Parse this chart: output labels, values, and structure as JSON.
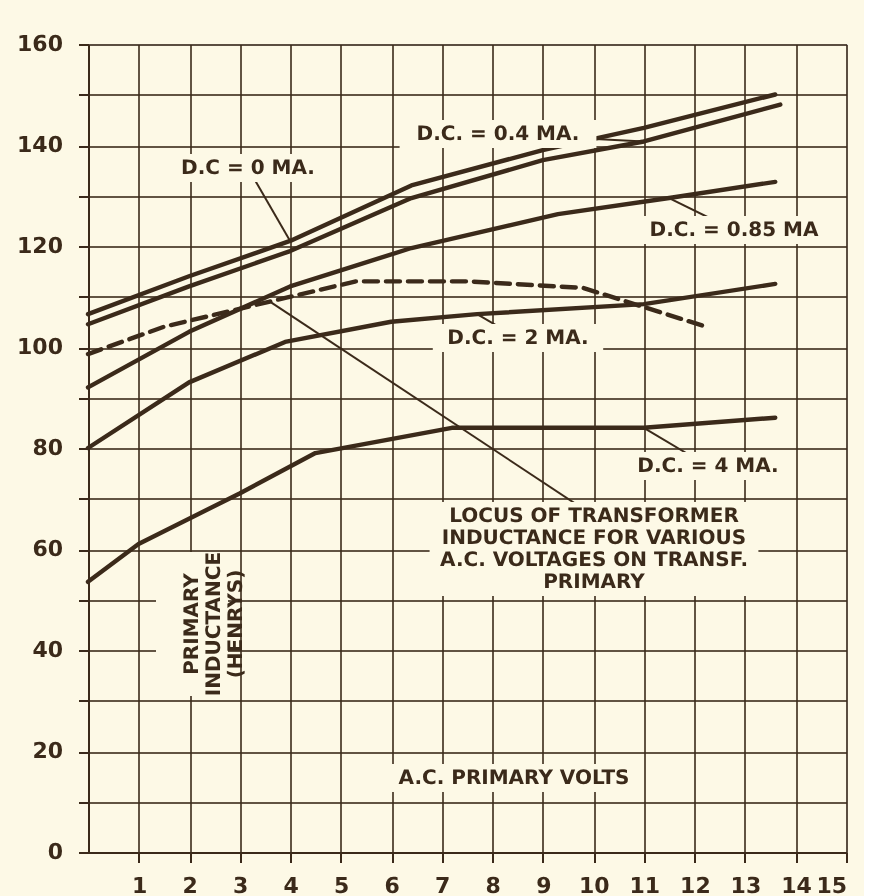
{
  "chart_data": {
    "type": "line",
    "xlabel": "A.C. PRIMARY VOLTS",
    "ylabel": "PRIMARY INDUCTANCE (HENRYS)",
    "xlim": [
      0,
      15
    ],
    "xticks": [
      1,
      2,
      3,
      4,
      5,
      6,
      7,
      8,
      9,
      10,
      11,
      12,
      13,
      14,
      15
    ],
    "ylim": [
      0,
      160
    ],
    "yticks": [
      0,
      {
        "value": 10,
        "label": null
      },
      20,
      {
        "value": 30,
        "label": null
      },
      40,
      {
        "value": 50,
        "label": null
      },
      60,
      {
        "value": 70,
        "label": null
      },
      80,
      {
        "value": 90,
        "label": null
      },
      100,
      {
        "value": 110,
        "label": null
      },
      120,
      {
        "value": 130,
        "label": null
      },
      140,
      {
        "value": 150,
        "label": null
      },
      160
    ],
    "grid": true,
    "legend": false,
    "marker": "none",
    "line_style": "solid",
    "series": [
      {
        "name": "D.C = 0 MA.",
        "color": "#3b2a1a",
        "x": [
          0,
          2,
          4,
          6.4,
          9,
          11,
          13.6
        ],
        "values": [
          106.5,
          114,
          121,
          132,
          139,
          143.4,
          150
        ]
      },
      {
        "name": "D.C. = 0.4 MA.",
        "color": "#3b2a1a",
        "x": [
          0,
          2,
          4,
          6.4,
          9,
          11,
          13.7
        ],
        "values": [
          104.5,
          112,
          119,
          129.5,
          137,
          140.7,
          148
        ]
      },
      {
        "name": "D.C. = 0.85 MA",
        "color": "#3b2a1a",
        "x": [
          0,
          2,
          4,
          6.4,
          9.3,
          11.5,
          13.6
        ],
        "values": [
          92,
          103,
          112,
          119.6,
          126.3,
          129.5,
          132.7
        ]
      },
      {
        "name": "D.C. = 2 MA.",
        "color": "#3b2a1a",
        "x": [
          0,
          2,
          3.9,
          6,
          7.7,
          11,
          13.6
        ],
        "values": [
          80,
          93,
          101,
          105,
          106.5,
          108.5,
          112.5
        ]
      },
      {
        "name": "D.C. = 4 MA.",
        "color": "#3b2a1a",
        "x": [
          0,
          1,
          3,
          4.5,
          7.2,
          11,
          13.6
        ],
        "values": [
          53.5,
          61,
          71,
          79,
          84,
          84,
          86
        ]
      },
      {
        "name": "LOCUS OF TRANSFORMER INDUCTANCE FOR VARIOUS A.C. VOLTAGES ON TRANSF. PRIMARY",
        "color": "#3b2a1a",
        "line_style": "dashed",
        "x": [
          0,
          1.5,
          3.6,
          5.3,
          7.5,
          9.8,
          12.3
        ],
        "values": [
          98.6,
          104,
          109,
          113,
          113,
          111.7,
          103.8
        ]
      }
    ]
  }
}
